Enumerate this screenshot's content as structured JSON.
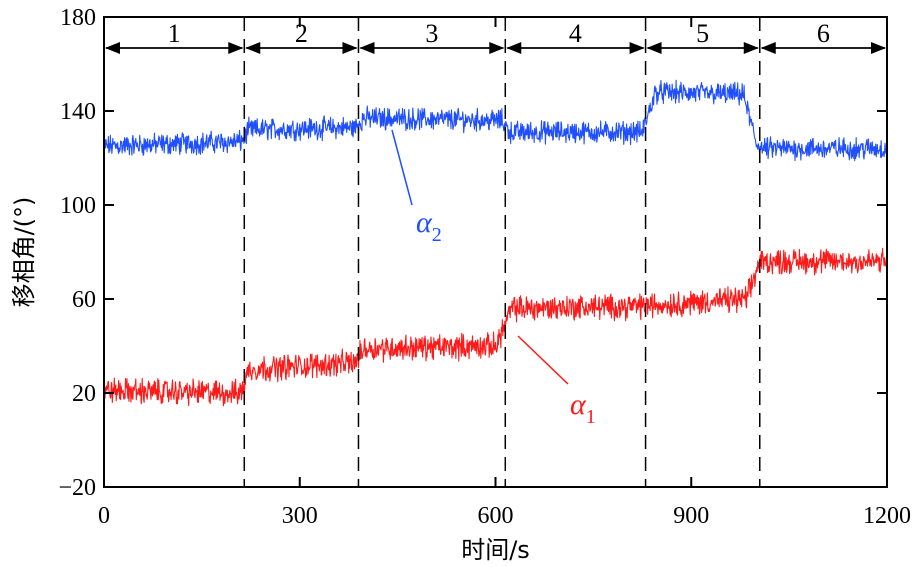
{
  "chart_data": {
    "type": "line",
    "xlabel": "时间/s",
    "ylabel": "移相角/(°)",
    "xlim": [
      0,
      1200
    ],
    "ylim": [
      -20,
      180
    ],
    "xticks": [
      0,
      300,
      600,
      900,
      1200
    ],
    "yticks": [
      -20,
      20,
      60,
      100,
      140,
      180
    ],
    "xtick_labels": [
      "0",
      "300",
      "600",
      "900",
      "1200"
    ],
    "ytick_labels": [
      "−20",
      "20",
      "60",
      "100",
      "140",
      "180"
    ],
    "grid": false,
    "regions": [
      {
        "label": "1",
        "start": 0,
        "end": 215
      },
      {
        "label": "2",
        "start": 215,
        "end": 390
      },
      {
        "label": "3",
        "start": 390,
        "end": 615
      },
      {
        "label": "4",
        "start": 615,
        "end": 830
      },
      {
        "label": "5",
        "start": 830,
        "end": 1005
      },
      {
        "label": "6",
        "start": 1005,
        "end": 1200
      }
    ],
    "series": [
      {
        "name": "α2",
        "color": "#1f4fff",
        "noise": 3.5,
        "x": [
          0,
          210,
          222,
          385,
          398,
          610,
          622,
          825,
          845,
          980,
          1000,
          1010,
          1200
        ],
        "y": [
          125,
          127,
          132,
          133,
          137,
          136,
          131,
          131,
          148,
          147,
          126,
          124,
          124
        ]
      },
      {
        "name": "α1",
        "color": "#ff1a1a",
        "noise": 4,
        "x": [
          0,
          210,
          222,
          385,
          398,
          600,
          625,
          825,
          985,
          1005,
          1200
        ],
        "y": [
          21,
          20,
          30,
          33,
          39,
          40,
          56,
          57,
          60,
          76,
          76
        ]
      }
    ],
    "annotations": [
      {
        "series": "α2",
        "text": "α",
        "sub": "2",
        "color": "#1f4fff"
      },
      {
        "series": "α1",
        "text": "α",
        "sub": "1",
        "color": "#ff1a1a"
      }
    ]
  }
}
